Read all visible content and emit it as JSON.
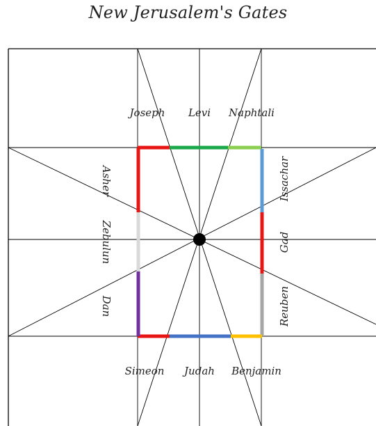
{
  "title": "New Jerusalem's Gates",
  "gates": {
    "north": [
      "Joseph",
      "Levi",
      "Naphtali"
    ],
    "east": [
      "Issachar",
      "Gad",
      "Reuben"
    ],
    "south": [
      "Simeon",
      "Judah",
      "Benjamin"
    ],
    "west": [
      "Asher",
      "Zebulun",
      "Dan"
    ]
  },
  "colors": {
    "north": [
      "#e81515",
      "#1aa84a",
      "#8bcf52"
    ],
    "east": [
      "#5b9bd5",
      "#e81515",
      "#a6a6a6"
    ],
    "south": [
      "#e81515",
      "#4472c4",
      "#ffc000"
    ],
    "west": [
      "#e81515",
      "#d9d9d9",
      "#7030a0"
    ]
  },
  "center_dot_color": "#000000"
}
